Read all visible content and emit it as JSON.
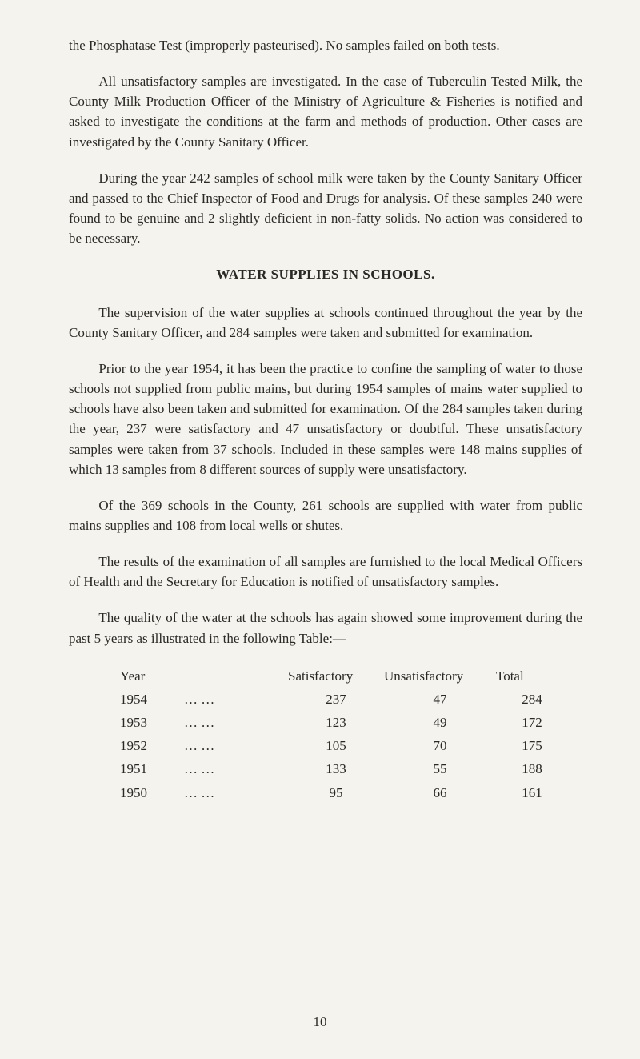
{
  "para1": "the Phosphatase Test (improperly pasteurised). No samples failed on both tests.",
  "para2": "All unsatisfactory samples are investigated. In the case of Tubercu­lin Tested Milk, the County Milk Production Officer of the Ministry of Agriculture & Fisheries is notified and asked to investigate the con­ditions at the farm and methods of production. Other cases are investigated by the County Sanitary Officer.",
  "para3": "During the year 242 samples of school milk were taken by the County Sanitary Officer and passed to the Chief Inspector of Food and Drugs for analysis. Of these samples 240 were found to be genuine and 2 slightly deficient in non-fatty solids. No action was considered to be necessary.",
  "heading": "WATER SUPPLIES IN SCHOOLS.",
  "para4": "The supervision of the water supplies at schools continued through­out the year by the County Sanitary Officer, and 284 samples were taken and submitted for examination.",
  "para5": "Prior to the year 1954, it has been the practice to confine the sampling of water to those schools not supplied from public mains, but during 1954 samples of mains water supplied to schools have also been taken and submitted for examination. Of the 284 samples taken during the year, 237 were satisfactory and 47 unsatisfactory or doubt­ful. These unsatisfactory samples were taken from 37 schools. Included in these samples were 148 mains supplies of which 13 samples from 8 different sources of supply were unsatisfactory.",
  "para6": "Of the 369 schools in the County, 261 schools are supplied with water from public mains supplies and 108 from local wells or shutes.",
  "para7": "The results of the examination of all samples are furnished to the local Medical Officers of Health and the Secretary for Education is notified of unsatisfactory samples.",
  "para8": "The quality of the water at the schools has again showed some improvement during the past 5 years as illustrated in the following Table:—",
  "table": {
    "headers": {
      "year": "Year",
      "sat": "Satisfactory",
      "unsat": "Unsatisfactory",
      "total": "Total"
    },
    "dots": "…       …",
    "rows": [
      {
        "year": "1954",
        "sat": "237",
        "unsat": "47",
        "total": "284"
      },
      {
        "year": "1953",
        "sat": "123",
        "unsat": "49",
        "total": "172"
      },
      {
        "year": "1952",
        "sat": "105",
        "unsat": "70",
        "total": "175"
      },
      {
        "year": "1951",
        "sat": "133",
        "unsat": "55",
        "total": "188"
      },
      {
        "year": "1950",
        "sat": "95",
        "unsat": "66",
        "total": "161"
      }
    ]
  },
  "pageNumber": "10"
}
